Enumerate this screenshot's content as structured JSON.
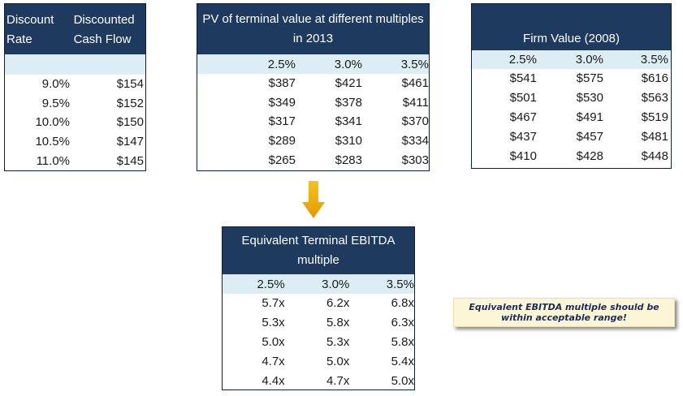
{
  "discount_table": {
    "header_col1": "Discount Rate",
    "header_col2": "Discounted Cash Flow",
    "rows": [
      [
        "9.0%",
        "$154"
      ],
      [
        "9.5%",
        "$152"
      ],
      [
        "10.0%",
        "$150"
      ],
      [
        "10.5%",
        "$147"
      ],
      [
        "11.0%",
        "$145"
      ]
    ]
  },
  "pv_table": {
    "title": "PV of terminal value at different multiples in 2013",
    "columns": [
      "2.5%",
      "3.0%",
      "3.5%"
    ],
    "rows": [
      [
        "$387",
        "$421",
        "$461"
      ],
      [
        "$349",
        "$378",
        "$411"
      ],
      [
        "$317",
        "$341",
        "$370"
      ],
      [
        "$289",
        "$310",
        "$334"
      ],
      [
        "$265",
        "$283",
        "$303"
      ]
    ]
  },
  "firm_value_table": {
    "title": "Firm Value (2008)",
    "columns": [
      "2.5%",
      "3.0%",
      "3.5%"
    ],
    "rows": [
      [
        "$541",
        "$575",
        "$616"
      ],
      [
        "$501",
        "$530",
        "$563"
      ],
      [
        "$467",
        "$491",
        "$519"
      ],
      [
        "$437",
        "$457",
        "$481"
      ],
      [
        "$410",
        "$428",
        "$448"
      ]
    ]
  },
  "ebitda_table": {
    "title": "Equivalent Terminal EBITDA multiple",
    "columns": [
      "2.5%",
      "3.0%",
      "3.5%"
    ],
    "rows": [
      [
        "5.7x",
        "6.2x",
        "6.8x"
      ],
      [
        "5.3x",
        "5.8x",
        "6.3x"
      ],
      [
        "5.0x",
        "5.3x",
        "5.8x"
      ],
      [
        "4.7x",
        "5.0x",
        "5.4x"
      ],
      [
        "4.4x",
        "4.7x",
        "5.0x"
      ]
    ]
  },
  "note": {
    "text": "Equivalent EBITDA multiple should be within acceptable range!"
  },
  "colors": {
    "header_bg": "#1f3a5f",
    "subheader_bg": "#dcedf3",
    "arrow": "#f2b400",
    "note_bg": "#fdf6d6"
  },
  "icons": {
    "arrow": "down-arrow-icon"
  }
}
